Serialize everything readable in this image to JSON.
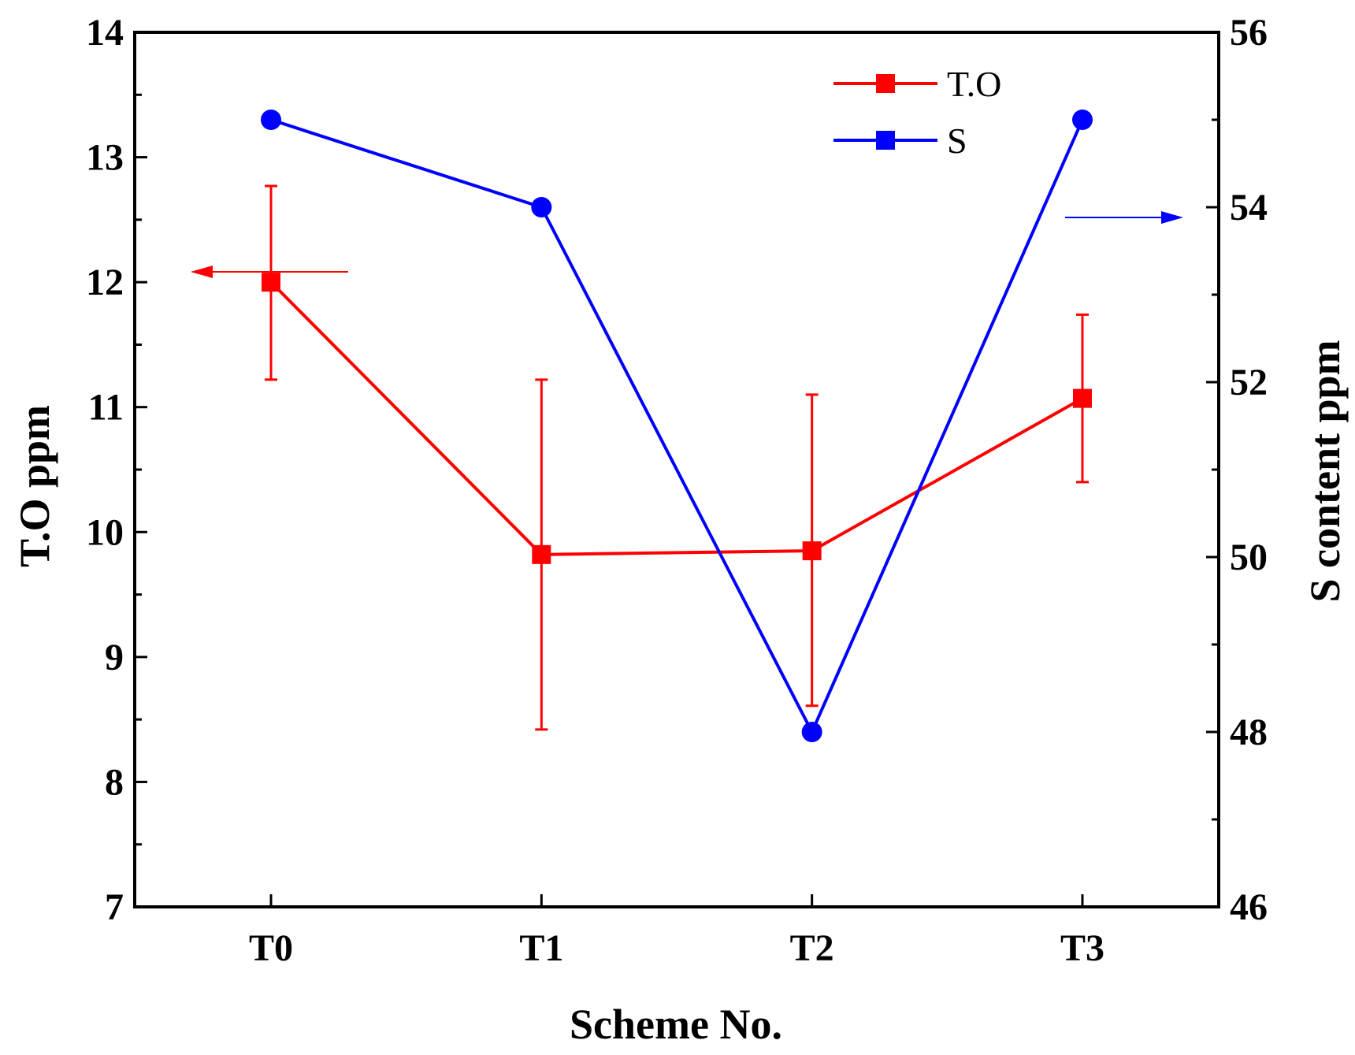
{
  "chart_data": {
    "type": "line",
    "categories": [
      "T0",
      "T1",
      "T2",
      "T3"
    ],
    "xlabel": "Scheme No.",
    "ylabel_left": "T.O ppm",
    "ylabel_right": "S content ppm",
    "ylim_left": [
      7,
      14
    ],
    "ylim_right": [
      46,
      56
    ],
    "yticks_left": [
      "7",
      "8",
      "9",
      "10",
      "11",
      "12",
      "13",
      "14"
    ],
    "yticks_right": [
      "46",
      "48",
      "50",
      "52",
      "54",
      "56"
    ],
    "grid": false,
    "legend_position": "top-right",
    "series": [
      {
        "name": "T.O",
        "axis": "left",
        "color": "#ff0000",
        "marker": "square",
        "values": [
          12.0,
          9.82,
          9.85,
          11.07
        ],
        "error_low": [
          11.22,
          8.42,
          8.61,
          10.4
        ],
        "error_high": [
          12.77,
          11.22,
          11.1,
          11.74
        ]
      },
      {
        "name": "S",
        "axis": "right",
        "color": "#0000ff",
        "marker": "circle",
        "values": [
          55.0,
          54.0,
          48.0,
          55.0
        ]
      }
    ],
    "annotations": [
      {
        "type": "arrow",
        "direction": "left",
        "meaning": "T.O uses left axis",
        "color": "#ff0000"
      },
      {
        "type": "arrow",
        "direction": "right",
        "meaning": "S uses right axis",
        "color": "#0000ff"
      }
    ]
  }
}
